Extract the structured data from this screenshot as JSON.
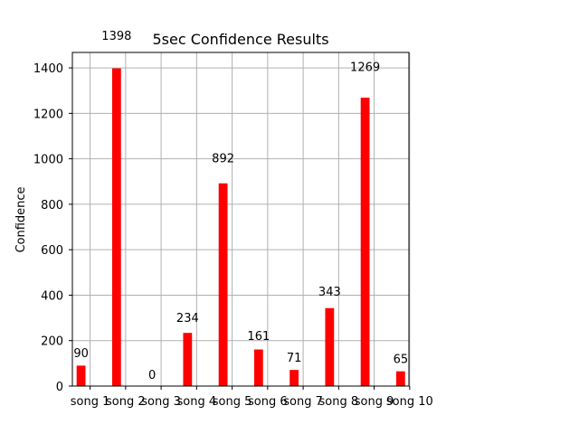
{
  "chart_data": {
    "type": "bar",
    "title": "5sec Confidence Results",
    "xlabel": "",
    "ylabel": "Confidence",
    "categories": [
      "song 1",
      "song 2",
      "song 3",
      "song 4",
      "song 5",
      "song 6",
      "song 7",
      "song 8",
      "song 9",
      "song 10"
    ],
    "values": [
      90,
      1398,
      0,
      234,
      892,
      161,
      71,
      343,
      1269,
      65
    ],
    "data_labels": [
      "90",
      "1398",
      "0",
      "234",
      "892",
      "161",
      "71",
      "343",
      "1269",
      "65"
    ],
    "yticks": [
      "0",
      "200",
      "400",
      "600",
      "800",
      "1000",
      "1200",
      "1400"
    ],
    "ylim": [
      0,
      1467.9
    ],
    "grid": true,
    "bar_color": "#ff0000",
    "grid_color": "#b0b0b0"
  }
}
